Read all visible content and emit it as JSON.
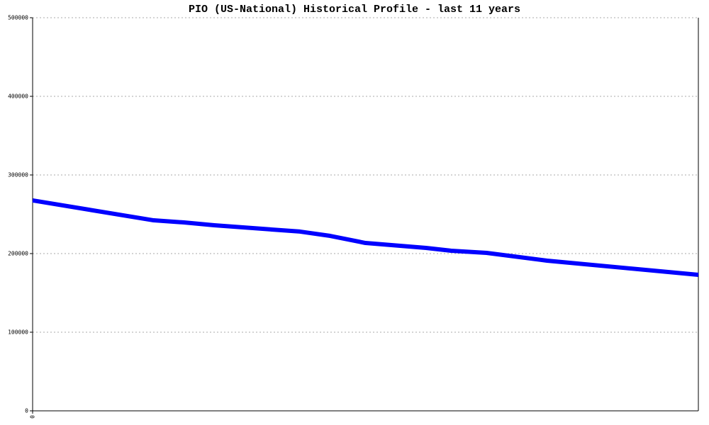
{
  "chart_data": {
    "type": "line",
    "title": "PIO (US-National) Historical Profile - last 11 years",
    "x": [
      0,
      24,
      30,
      36,
      53,
      59,
      66,
      78,
      83,
      90,
      102,
      132
    ],
    "values": [
      267600,
      242300,
      239600,
      236000,
      228000,
      222500,
      213500,
      207200,
      203600,
      200900,
      191000,
      173000
    ],
    "color": "#0000ff",
    "xlim": [
      0,
      132
    ],
    "xticks": [
      0
    ],
    "ylim": [
      0,
      500000
    ],
    "yticks": [
      0,
      100000,
      200000,
      300000,
      400000,
      500000
    ],
    "grid": true
  }
}
